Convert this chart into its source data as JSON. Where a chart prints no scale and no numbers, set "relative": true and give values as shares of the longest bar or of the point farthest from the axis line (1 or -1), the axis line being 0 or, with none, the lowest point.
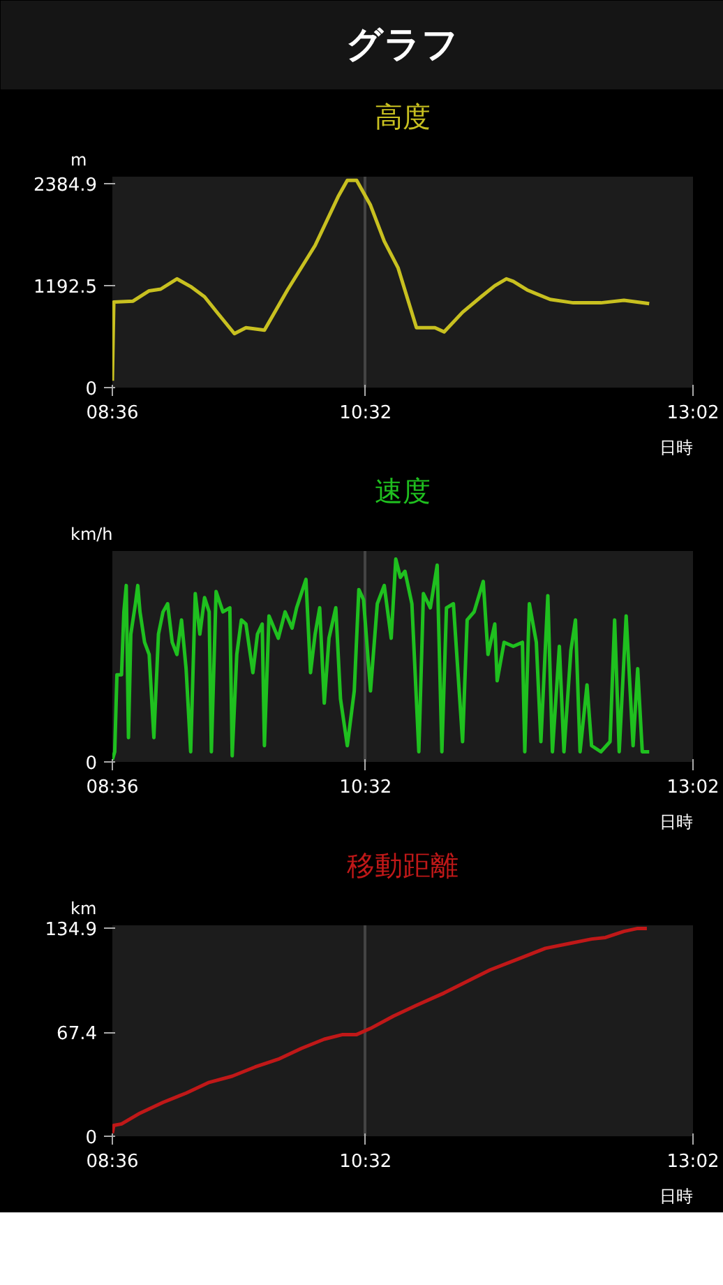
{
  "chart_data": [
    {
      "type": "line",
      "title": "高度",
      "ylabel": "m",
      "xlabel": "日時",
      "annotations": [
        "グラフ"
      ],
      "xlim": [
        8.6,
        13.0333
      ],
      "ylim": [
        0,
        2463
      ],
      "xticks": [
        {
          "value": 8.6,
          "label": "08:36"
        },
        {
          "value": 10.5333,
          "label": "10:32"
        },
        {
          "value": 13.0333,
          "label": "13:02"
        }
      ],
      "yticks": [
        0,
        1192.5,
        2384.9
      ],
      "grid": "x",
      "line_style": "solid",
      "series": [
        {
          "color": "#c8c020",
          "x": [
            8.6,
            8.611,
            8.758,
            8.881,
            8.969,
            9.093,
            9.198,
            9.304,
            9.409,
            9.532,
            9.62,
            9.761,
            9.937,
            10.148,
            10.324,
            10.394,
            10.465,
            10.571,
            10.676,
            10.781,
            10.922,
            11.063,
            11.133,
            11.274,
            11.415,
            11.52,
            11.608,
            11.661,
            11.767,
            11.943,
            12.119,
            12.33,
            12.506,
            12.699
          ],
          "values": [
            80,
            1000,
            1010,
            1130,
            1150,
            1270,
            1180,
            1060,
            860,
            630,
            700,
            670,
            1140,
            1660,
            2230,
            2420,
            2420,
            2130,
            1710,
            1400,
            700,
            700,
            650,
            880,
            1060,
            1190,
            1270,
            1240,
            1140,
            1030,
            990,
            990,
            1020,
            980
          ]
        }
      ]
    },
    {
      "type": "line",
      "title": "速度",
      "ylabel": "km/h",
      "xlabel": "日時",
      "relative": true,
      "annotations": [
        "0"
      ],
      "xlim": [
        8.6,
        13.0333
      ],
      "xticks": [
        {
          "value": 8.6,
          "label": "08:36"
        },
        {
          "value": 10.5333,
          "label": "10:32"
        },
        {
          "value": 13.0333,
          "label": "13:02"
        }
      ],
      "grid": "x",
      "line_style": "solid",
      "series": [
        {
          "color": "#1fc01f",
          "x": [
            8.6,
            8.618,
            8.635,
            8.67,
            8.688,
            8.706,
            8.723,
            8.741,
            8.776,
            8.794,
            8.811,
            8.846,
            8.881,
            8.917,
            8.952,
            8.987,
            9.022,
            9.057,
            9.093,
            9.128,
            9.163,
            9.198,
            9.233,
            9.268,
            9.304,
            9.339,
            9.356,
            9.392,
            9.444,
            9.497,
            9.515,
            9.55,
            9.585,
            9.62,
            9.673,
            9.708,
            9.744,
            9.761,
            9.796,
            9.867,
            9.919,
            9.972,
            10.007,
            10.078,
            10.113,
            10.148,
            10.183,
            10.218,
            10.254,
            10.306,
            10.342,
            10.394,
            10.447,
            10.482,
            10.518,
            10.571,
            10.623,
            10.676,
            10.729,
            10.764,
            10.799,
            10.834,
            10.887,
            10.94,
            10.975,
            11.028,
            11.08,
            11.116,
            11.151,
            11.204,
            11.274,
            11.309,
            11.362,
            11.432,
            11.468,
            11.52,
            11.538,
            11.591,
            11.661,
            11.731,
            11.749,
            11.784,
            11.837,
            11.872,
            11.925,
            11.96,
            12.013,
            12.048,
            12.101,
            12.136,
            12.171,
            12.224,
            12.259,
            12.33,
            12.4,
            12.435,
            12.47,
            12.523,
            12.576,
            12.611,
            12.646,
            12.699
          ],
          "values": [
            0.01,
            0.05,
            0.43,
            0.43,
            0.74,
            0.87,
            0.12,
            0.63,
            0.78,
            0.87,
            0.74,
            0.59,
            0.53,
            0.12,
            0.63,
            0.74,
            0.78,
            0.59,
            0.53,
            0.7,
            0.46,
            0.05,
            0.83,
            0.63,
            0.81,
            0.74,
            0.05,
            0.84,
            0.74,
            0.76,
            0.03,
            0.53,
            0.7,
            0.68,
            0.44,
            0.63,
            0.68,
            0.08,
            0.72,
            0.61,
            0.74,
            0.66,
            0.76,
            0.9,
            0.44,
            0.63,
            0.76,
            0.29,
            0.61,
            0.76,
            0.31,
            0.08,
            0.35,
            0.85,
            0.8,
            0.35,
            0.78,
            0.87,
            0.61,
            1.0,
            0.91,
            0.94,
            0.78,
            0.05,
            0.83,
            0.76,
            0.97,
            0.05,
            0.76,
            0.78,
            0.1,
            0.7,
            0.74,
            0.89,
            0.53,
            0.68,
            0.4,
            0.59,
            0.57,
            0.59,
            0.05,
            0.78,
            0.59,
            0.1,
            0.82,
            0.05,
            0.57,
            0.05,
            0.55,
            0.7,
            0.05,
            0.38,
            0.08,
            0.05,
            0.1,
            0.7,
            0.05,
            0.72,
            0.08,
            0.46,
            0.05,
            0.05
          ]
        }
      ]
    },
    {
      "type": "line",
      "title": "移動距離",
      "ylabel": "km",
      "xlabel": "日時",
      "xlim": [
        8.6,
        13.0333
      ],
      "ylim": [
        0,
        136.9
      ],
      "xticks": [
        {
          "value": 8.6,
          "label": "08:36"
        },
        {
          "value": 10.5333,
          "label": "10:32"
        },
        {
          "value": 13.0333,
          "label": "13:02"
        }
      ],
      "yticks": [
        0,
        67.4,
        134.9
      ],
      "grid": "x",
      "line_style": "solid",
      "series": [
        {
          "color": "#c01818",
          "x": [
            8.6,
            8.611,
            8.67,
            8.811,
            8.987,
            9.163,
            9.339,
            9.515,
            9.691,
            9.867,
            10.043,
            10.218,
            10.359,
            10.465,
            10.571,
            10.746,
            10.922,
            11.133,
            11.274,
            11.485,
            11.696,
            11.907,
            12.083,
            12.259,
            12.365,
            12.506,
            12.611,
            12.681
          ],
          "values": [
            2,
            7,
            8,
            15,
            22,
            28,
            35,
            39,
            45,
            50,
            57,
            63,
            66,
            66,
            70,
            78,
            85,
            93,
            99,
            108,
            115,
            122,
            125,
            128,
            129,
            133,
            134.9,
            134.9
          ]
        }
      ]
    }
  ]
}
